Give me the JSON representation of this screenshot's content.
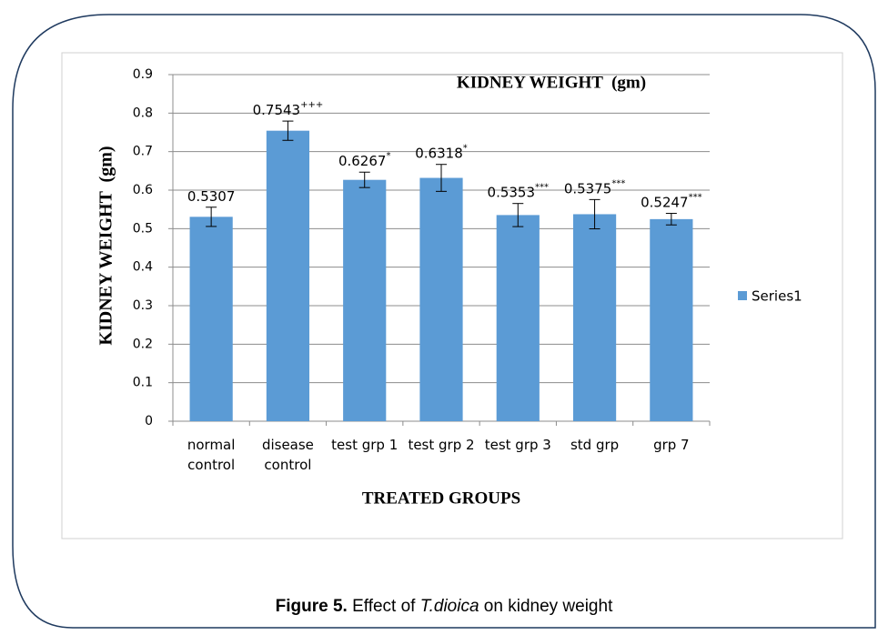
{
  "chart_data": {
    "type": "bar",
    "title": "KIDNEY WEIGHT  (gm)",
    "y_label": "KIDNEY WEIGHT  (gm)",
    "x_label": "TREATED GROUPS",
    "categories": [
      "normal control",
      "disease control",
      "test grp 1",
      "test grp 2",
      "test grp 3",
      "std grp",
      "grp 7"
    ],
    "series": [
      {
        "name": "Series1",
        "color": "#5b9bd5",
        "values": [
          0.5307,
          0.7543,
          0.6267,
          0.6318,
          0.5353,
          0.5375,
          0.5247
        ],
        "errors": [
          0.025,
          0.025,
          0.02,
          0.035,
          0.03,
          0.038,
          0.015
        ],
        "markers": [
          null,
          "+++",
          "*",
          "*",
          "***",
          "***",
          "***"
        ]
      }
    ],
    "ylim": [
      0,
      0.9
    ],
    "yticks": [
      0,
      0.1,
      0.2,
      0.3,
      0.4,
      0.5,
      0.6,
      0.7,
      0.8,
      0.9
    ],
    "grid": true,
    "legend": "right"
  },
  "caption": {
    "label": "Figure 5.",
    "text_before": " Effect of ",
    "species": "T.dioica",
    "text_after": " on kidney weight"
  }
}
